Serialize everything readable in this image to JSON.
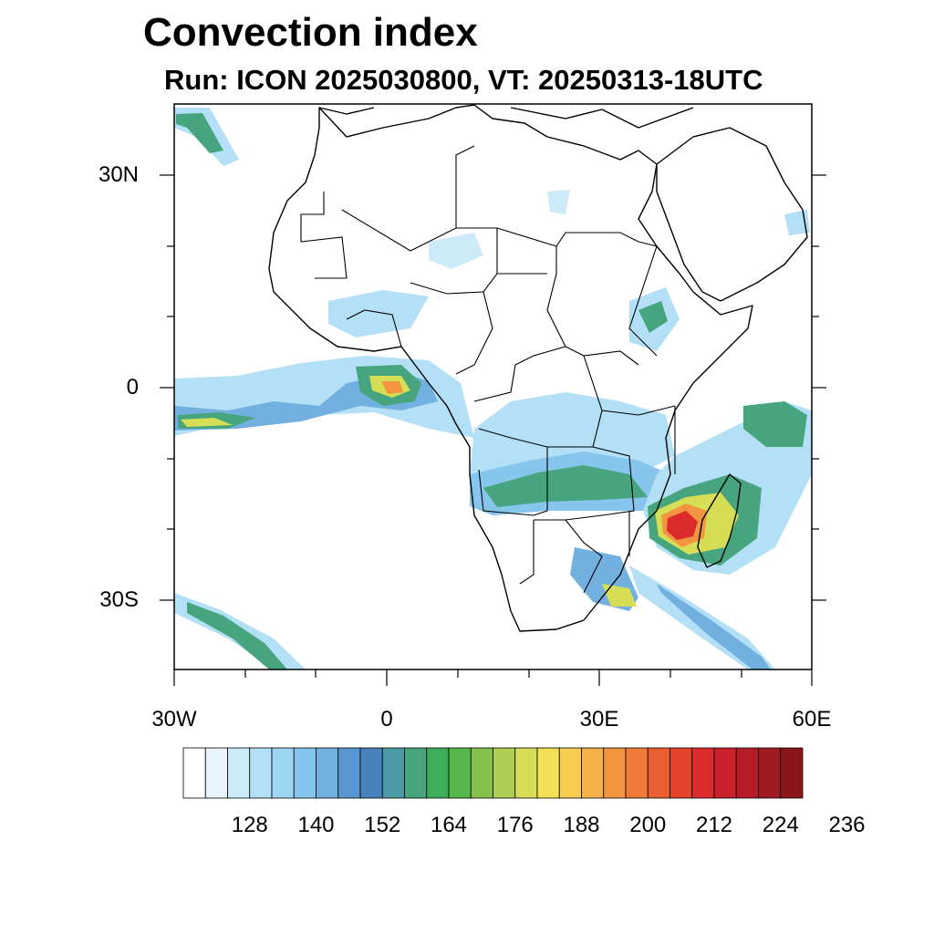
{
  "title": "Convection index",
  "subtitle": "Run: ICON 2025030800,  VT: 20250313-18UTC",
  "axes": {
    "lat_labels": [
      "30N",
      "0",
      "30S"
    ],
    "lon_labels": [
      "30W",
      "0",
      "30E",
      "60E"
    ]
  },
  "colorbar": {
    "colors": [
      "#ffffff",
      "#e8f5fc",
      "#cdeaf8",
      "#b3e0f6",
      "#9dd6f4",
      "#86c6ec",
      "#72b0e0",
      "#5a96cf",
      "#4a82be",
      "#4c9aa8",
      "#46a57e",
      "#3fae5a",
      "#56b84a",
      "#85c24c",
      "#aecf52",
      "#d6de55",
      "#f2e155",
      "#f7cc4f",
      "#f6b048",
      "#f39540",
      "#ef7a38",
      "#e95f30",
      "#e4432b",
      "#dc2b2a",
      "#cb1f2b",
      "#b61b27",
      "#a01a22",
      "#8a161c"
    ],
    "tick_labels": [
      "128",
      "140",
      "152",
      "164",
      "176",
      "188",
      "200",
      "212",
      "224",
      "236"
    ]
  },
  "map_style": {
    "outline_color": "#000000",
    "field_palette": {
      "light": "#b3e0f6",
      "blue": "#72b0e0",
      "green": "#46a57e",
      "yellow": "#d6de55",
      "orange": "#f39540",
      "red": "#dc2b2a"
    }
  }
}
